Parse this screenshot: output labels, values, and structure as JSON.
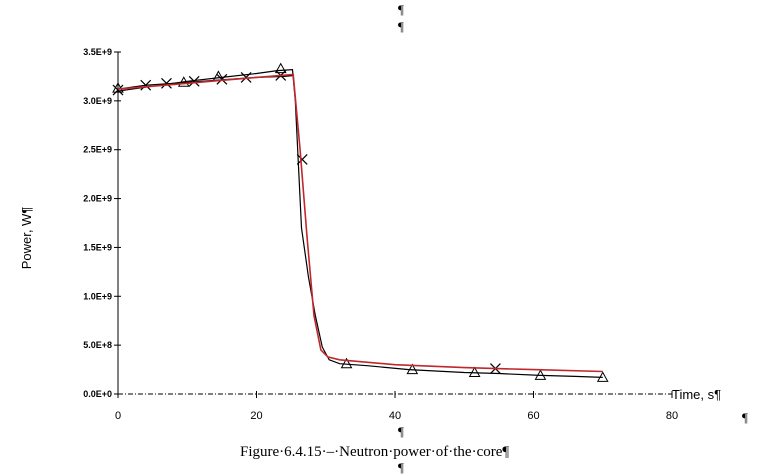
{
  "chart_data": {
    "type": "line",
    "title": "",
    "xlabel": "Time, s¶",
    "ylabel": "Power, W¶",
    "xlim": [
      0,
      80
    ],
    "ylim": [
      0,
      3500000000
    ],
    "grid": false,
    "x_ticks": [
      0,
      20,
      40,
      60,
      80
    ],
    "x_tick_labels": [
      "0",
      "20",
      "40",
      "60",
      "80"
    ],
    "y_ticks": [
      0,
      500000000,
      1000000000,
      1500000000,
      2000000000,
      2500000000,
      3000000000,
      3500000000
    ],
    "y_tick_labels": [
      "0.0E+0",
      "5.0E+8",
      "1.0E+9",
      "1.5E+9",
      "2.0E+9",
      "2.5E+9",
      "3.0E+9",
      "3.5E+9"
    ],
    "series": [
      {
        "color": "#000000",
        "marker": "triangle",
        "x": [
          0,
          5,
          10,
          15,
          20,
          23,
          25.2,
          25.6,
          26.5,
          27.5,
          28.5,
          29.5,
          30.5,
          32,
          36,
          42,
          50,
          55,
          61,
          66,
          70
        ],
        "y": [
          3100000000,
          3150000000,
          3200000000,
          3240000000,
          3280000000,
          3310000000,
          3320000000,
          3000000000,
          1700000000,
          1200000000,
          800000000,
          480000000,
          350000000,
          310000000,
          290000000,
          250000000,
          220000000,
          210000000,
          190000000,
          180000000,
          170000000
        ],
        "marker_x": [
          0,
          9.5,
          14.5,
          23.5,
          33,
          42.5,
          51.5,
          61,
          70
        ],
        "marker_y": [
          3130000000,
          3190000000,
          3250000000,
          3330000000,
          310000000,
          250000000,
          220000000,
          190000000,
          170000000
        ]
      },
      {
        "color": "#000000",
        "marker": "x",
        "x": [
          0,
          4,
          8,
          12,
          16,
          20,
          24,
          25.4
        ],
        "y": [
          3120000000,
          3160000000,
          3180000000,
          3200000000,
          3220000000,
          3240000000,
          3250000000,
          3260000000
        ],
        "marker_x": [
          0,
          4,
          7,
          11,
          15,
          18.5,
          23.5,
          26.6,
          54.5
        ],
        "marker_y": [
          3110000000,
          3160000000,
          3180000000,
          3200000000,
          3220000000,
          3240000000,
          3260000000,
          2400000000,
          260000000
        ]
      },
      {
        "color": "#c0282c",
        "marker": "none",
        "x": [
          0,
          5,
          10,
          15,
          20,
          25.3,
          26.3,
          27.3,
          28.3,
          29.3,
          30.3,
          32,
          40,
          50,
          60,
          70
        ],
        "y": [
          3120000000,
          3150000000,
          3180000000,
          3210000000,
          3240000000,
          3270000000,
          2500000000,
          1600000000,
          800000000,
          450000000,
          380000000,
          350000000,
          300000000,
          270000000,
          250000000,
          230000000
        ]
      }
    ],
    "annotations": {
      "para_marks": [
        "¶",
        "¶",
        "¶",
        "¶",
        "¶"
      ]
    }
  },
  "caption": "Figure·6.4.15·–·Neutron·power·of·the·core¶"
}
